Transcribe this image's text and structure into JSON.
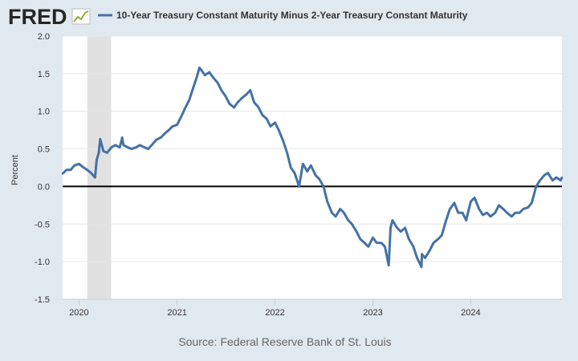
{
  "header": {
    "logo_text": "FRED",
    "logo_icon": "line-chart-icon",
    "legend_label": "10-Year Treasury Constant Maturity Minus 2-Year Treasury Constant Maturity"
  },
  "footer": {
    "source": "Source: Federal Reserve Bank of St. Louis"
  },
  "colors": {
    "background": "#e1e9f0",
    "plot_background": "#ffffff",
    "series": "#4572a7",
    "zero_line": "#000000",
    "recession": "#e1e1e1",
    "logo_icon": "#89b12c"
  },
  "chart_data": {
    "type": "line",
    "title": "",
    "xlabel": "",
    "ylabel": "Percent",
    "ylim": [
      -1.5,
      2.0
    ],
    "yticks": [
      -1.5,
      -1.0,
      -0.5,
      0.0,
      0.5,
      1.0,
      1.5,
      2.0
    ],
    "ytick_labels": [
      "-1.5",
      "-1.0",
      "-0.5",
      "0.0",
      "0.5",
      "1.0",
      "1.5",
      "2.0"
    ],
    "xlim": [
      "2019-11-01",
      "2024-12-06"
    ],
    "xticks": [
      "2020-01-01",
      "2021-01-01",
      "2022-01-01",
      "2023-01-01",
      "2024-01-01"
    ],
    "xtick_labels": [
      "2020",
      "2021",
      "2022",
      "2023",
      "2024"
    ],
    "grid": "horizontal",
    "reference_line": 0.0,
    "recession_shading": [
      {
        "start": "2020-02-01",
        "end": "2020-04-30"
      }
    ],
    "series": [
      {
        "name": "10-Year Treasury Constant Maturity Minus 2-Year Treasury Constant Maturity",
        "x": [
          "2019-11-01",
          "2019-11-15",
          "2019-12-01",
          "2019-12-15",
          "2020-01-01",
          "2020-01-15",
          "2020-02-01",
          "2020-02-15",
          "2020-03-01",
          "2020-03-07",
          "2020-03-15",
          "2020-03-20",
          "2020-04-01",
          "2020-04-15",
          "2020-05-01",
          "2020-05-15",
          "2020-06-01",
          "2020-06-10",
          "2020-06-15",
          "2020-07-01",
          "2020-07-15",
          "2020-08-01",
          "2020-08-15",
          "2020-09-01",
          "2020-09-15",
          "2020-10-01",
          "2020-10-15",
          "2020-11-01",
          "2020-11-15",
          "2020-12-01",
          "2020-12-15",
          "2021-01-01",
          "2021-01-15",
          "2021-02-01",
          "2021-02-15",
          "2021-03-01",
          "2021-03-15",
          "2021-03-25",
          "2021-04-01",
          "2021-04-15",
          "2021-05-01",
          "2021-05-15",
          "2021-06-01",
          "2021-06-15",
          "2021-07-01",
          "2021-07-15",
          "2021-08-01",
          "2021-08-15",
          "2021-09-01",
          "2021-09-15",
          "2021-10-01",
          "2021-10-15",
          "2021-11-01",
          "2021-11-15",
          "2021-12-01",
          "2021-12-15",
          "2022-01-01",
          "2022-01-15",
          "2022-02-01",
          "2022-02-15",
          "2022-03-01",
          "2022-03-15",
          "2022-04-01",
          "2022-04-15",
          "2022-05-01",
          "2022-05-15",
          "2022-06-01",
          "2022-06-15",
          "2022-07-01",
          "2022-07-15",
          "2022-08-01",
          "2022-08-15",
          "2022-09-01",
          "2022-09-15",
          "2022-10-01",
          "2022-10-15",
          "2022-11-01",
          "2022-11-15",
          "2022-12-01",
          "2022-12-15",
          "2023-01-01",
          "2023-01-15",
          "2023-02-01",
          "2023-02-15",
          "2023-03-01",
          "2023-03-08",
          "2023-03-15",
          "2023-04-01",
          "2023-04-15",
          "2023-05-01",
          "2023-05-15",
          "2023-06-01",
          "2023-06-15",
          "2023-07-01",
          "2023-07-03",
          "2023-07-15",
          "2023-08-01",
          "2023-08-15",
          "2023-09-01",
          "2023-09-15",
          "2023-10-01",
          "2023-10-15",
          "2023-11-01",
          "2023-11-15",
          "2023-12-01",
          "2023-12-15",
          "2024-01-01",
          "2024-01-15",
          "2024-02-01",
          "2024-02-15",
          "2024-03-01",
          "2024-03-15",
          "2024-04-01",
          "2024-04-15",
          "2024-05-01",
          "2024-05-15",
          "2024-06-01",
          "2024-06-15",
          "2024-07-01",
          "2024-07-15",
          "2024-08-01",
          "2024-08-15",
          "2024-09-01",
          "2024-09-15",
          "2024-10-01",
          "2024-10-15",
          "2024-11-01",
          "2024-11-15",
          "2024-12-01",
          "2024-12-06"
        ],
        "y": [
          0.17,
          0.22,
          0.22,
          0.28,
          0.3,
          0.26,
          0.22,
          0.18,
          0.12,
          0.35,
          0.45,
          0.63,
          0.47,
          0.45,
          0.52,
          0.55,
          0.52,
          0.65,
          0.55,
          0.52,
          0.5,
          0.52,
          0.55,
          0.52,
          0.5,
          0.56,
          0.62,
          0.65,
          0.7,
          0.75,
          0.8,
          0.82,
          0.92,
          1.05,
          1.15,
          1.3,
          1.45,
          1.58,
          1.55,
          1.48,
          1.52,
          1.45,
          1.38,
          1.28,
          1.2,
          1.1,
          1.05,
          1.12,
          1.18,
          1.22,
          1.28,
          1.12,
          1.05,
          0.95,
          0.9,
          0.8,
          0.85,
          0.75,
          0.6,
          0.45,
          0.25,
          0.18,
          0.0,
          0.3,
          0.2,
          0.28,
          0.15,
          0.1,
          0.0,
          -0.2,
          -0.35,
          -0.4,
          -0.3,
          -0.35,
          -0.45,
          -0.5,
          -0.6,
          -0.7,
          -0.75,
          -0.8,
          -0.68,
          -0.75,
          -0.75,
          -0.8,
          -1.05,
          -0.55,
          -0.45,
          -0.55,
          -0.6,
          -0.55,
          -0.7,
          -0.8,
          -0.95,
          -1.07,
          -0.9,
          -0.95,
          -0.85,
          -0.75,
          -0.7,
          -0.65,
          -0.45,
          -0.3,
          -0.22,
          -0.35,
          -0.35,
          -0.45,
          -0.2,
          -0.15,
          -0.3,
          -0.38,
          -0.35,
          -0.4,
          -0.35,
          -0.25,
          -0.3,
          -0.35,
          -0.4,
          -0.35,
          -0.35,
          -0.3,
          -0.28,
          -0.22,
          0.0,
          0.08,
          0.15,
          0.18,
          0.08,
          0.12,
          0.08,
          0.12
        ]
      }
    ]
  }
}
